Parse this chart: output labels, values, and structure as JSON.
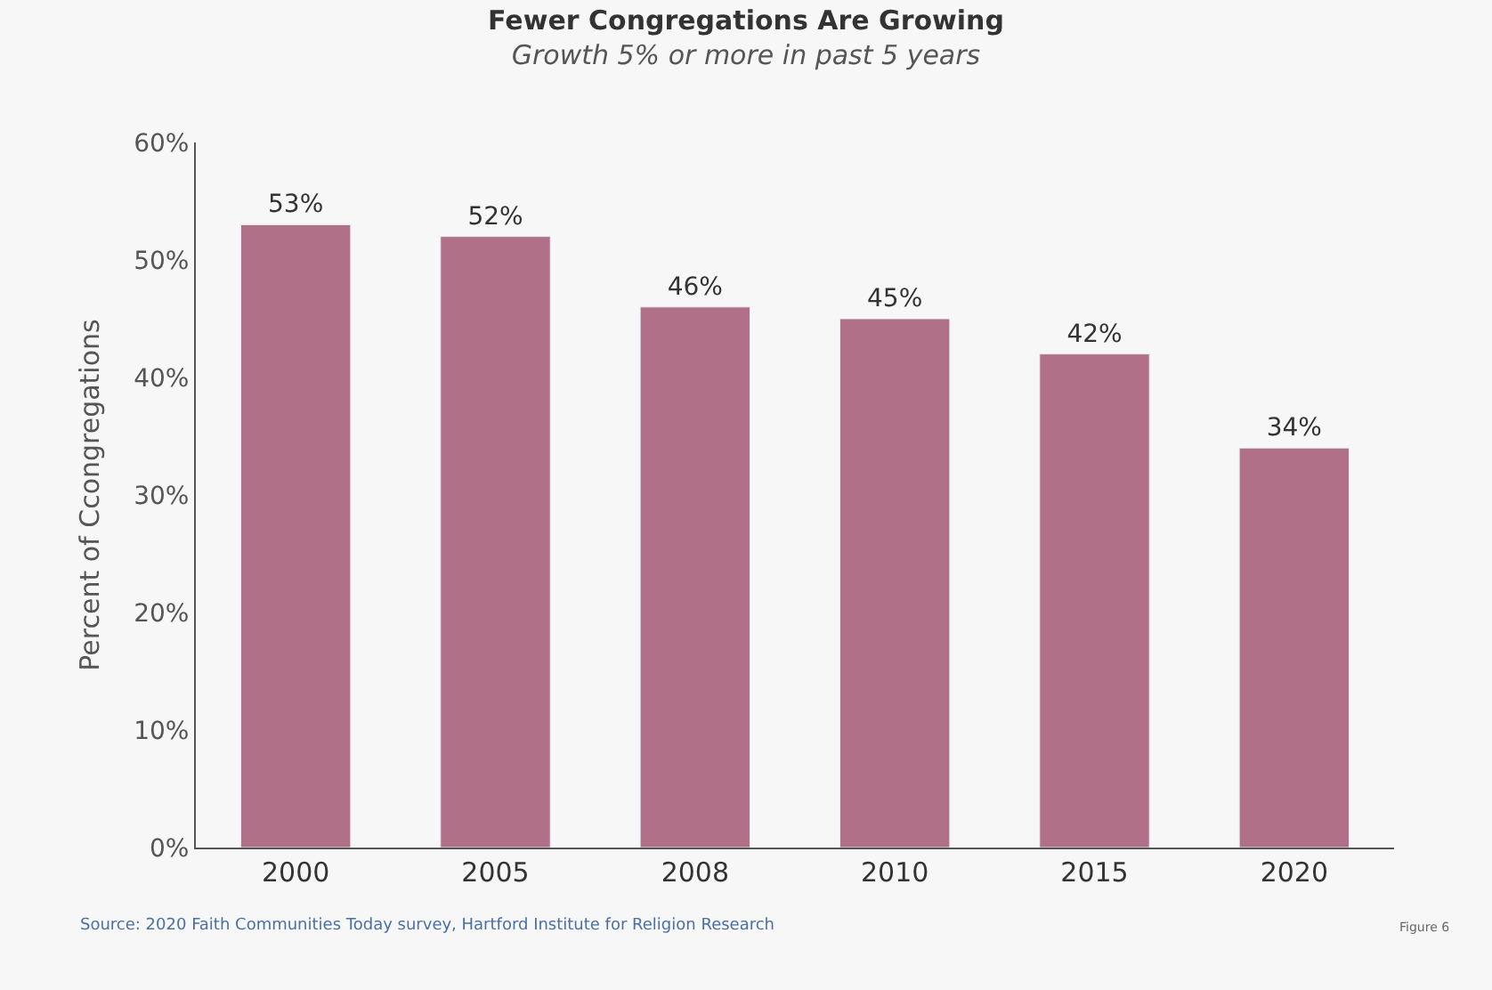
{
  "chart_data": {
    "type": "bar",
    "title": "Fewer Congregations Are Growing",
    "subtitle": "Growth 5% or more in past 5 years",
    "ylabel": "Percent of Ccongregations",
    "categories": [
      "2000",
      "2005",
      "2008",
      "2010",
      "2015",
      "2020"
    ],
    "values": [
      53,
      52,
      46,
      45,
      42,
      34
    ],
    "value_labels": [
      "53%",
      "52%",
      "46%",
      "45%",
      "42%",
      "34%"
    ],
    "color": "#b07088",
    "ylim": [
      0,
      60
    ],
    "yticks": [
      {
        "value": 0,
        "label": "0%"
      },
      {
        "value": 10,
        "label": "10%"
      },
      {
        "value": 20,
        "label": "20%"
      },
      {
        "value": 30,
        "label": "30%"
      },
      {
        "value": 40,
        "label": "40%"
      },
      {
        "value": 50,
        "label": "50%"
      },
      {
        "value": 60,
        "label": "60%"
      }
    ],
    "grid": false,
    "legend": false,
    "annotations": [
      "Source: 2020 Faith Communities Today survey, Hartford Institute for Religion Research",
      "Figure 6"
    ]
  }
}
